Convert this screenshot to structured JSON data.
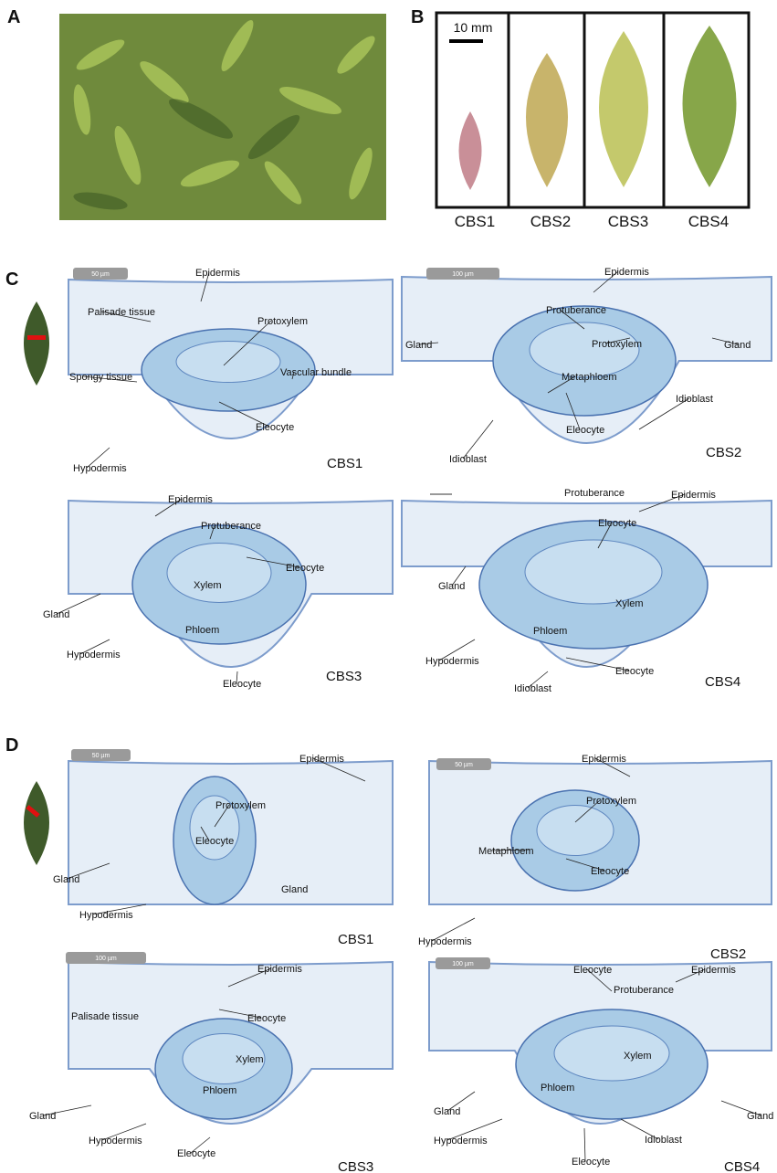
{
  "panel_a": {
    "letter": "A"
  },
  "panel_b": {
    "letter": "B",
    "scale_bar": "10 mm",
    "stages": [
      "CBS1",
      "CBS2",
      "CBS3",
      "CBS4"
    ]
  },
  "panel_c": {
    "letter": "C",
    "sections": [
      {
        "stage": "CBS1",
        "scale_bar": "50 µm",
        "labels": [
          "Epidermis",
          "Palisade tissue",
          "Protoxylem",
          "Spongy tissue",
          "Vascular bundle",
          "Eleocyte",
          "Hypodermis"
        ]
      },
      {
        "stage": "CBS2",
        "scale_bar": "100 µm",
        "labels": [
          "Epidermis",
          "Protuberance",
          "Protoxylem",
          "Gland",
          "Gland",
          "Metaphloem",
          "Idioblast",
          "Eleocyte",
          "Idioblast"
        ]
      },
      {
        "stage": "CBS3",
        "labels": [
          "Epidermis",
          "Protuberance",
          "Eleocyte",
          "Xylem",
          "Gland",
          "Phloem",
          "Hypodermis",
          "Eleocyte"
        ]
      },
      {
        "stage": "CBS4",
        "labels": [
          "Protuberance",
          "Epidermis",
          "Eleocyte",
          "Gland",
          "Xylem",
          "Phloem",
          "Eleocyte",
          "Hypodermis",
          "Idioblast"
        ]
      }
    ]
  },
  "panel_d": {
    "letter": "D",
    "sections": [
      {
        "stage": "CBS1",
        "scale_bar": "50 µm",
        "labels": [
          "Epidermis",
          "Protoxylem",
          "Eleocyte",
          "Gland",
          "Gland",
          "Hypodermis"
        ]
      },
      {
        "stage": "CBS2",
        "scale_bar": "50 µm",
        "labels": [
          "Epidermis",
          "Protoxylem",
          "Metaphloem",
          "Eleocyte",
          "Hypodermis"
        ]
      },
      {
        "stage": "CBS3",
        "scale_bar": "100 µm",
        "labels": [
          "Epidermis",
          "Palisade tissue",
          "Eleocyte",
          "Xylem",
          "Phloem",
          "Gland",
          "Hypodermis",
          "Eleocyte"
        ]
      },
      {
        "stage": "CBS4",
        "scale_bar": "100 µm",
        "labels": [
          "Eleocyte",
          "Epidermis",
          "Protuberance",
          "Xylem",
          "Phloem",
          "Gland",
          "Gland",
          "Hypodermis",
          "Idioblast",
          "Eleocyte"
        ]
      }
    ]
  }
}
